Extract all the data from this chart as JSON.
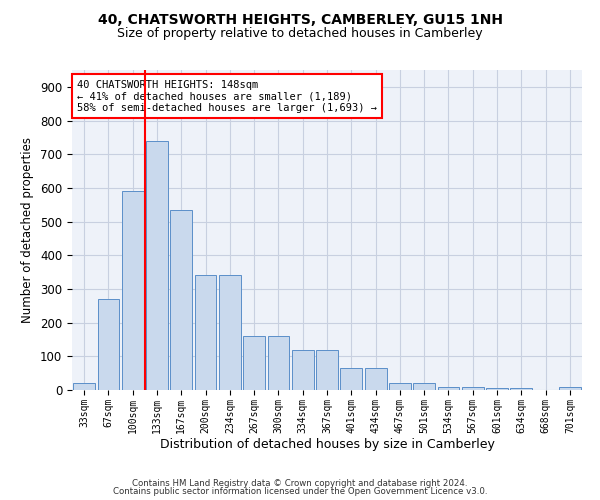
{
  "title": "40, CHATSWORTH HEIGHTS, CAMBERLEY, GU15 1NH",
  "subtitle": "Size of property relative to detached houses in Camberley",
  "xlabel": "Distribution of detached houses by size in Camberley",
  "ylabel": "Number of detached properties",
  "bar_labels": [
    "33sqm",
    "67sqm",
    "100sqm",
    "133sqm",
    "167sqm",
    "200sqm",
    "234sqm",
    "267sqm",
    "300sqm",
    "334sqm",
    "367sqm",
    "401sqm",
    "434sqm",
    "467sqm",
    "501sqm",
    "534sqm",
    "567sqm",
    "601sqm",
    "634sqm",
    "668sqm",
    "701sqm"
  ],
  "bar_values": [
    20,
    270,
    590,
    740,
    535,
    340,
    340,
    160,
    160,
    120,
    120,
    65,
    65,
    20,
    20,
    10,
    10,
    7,
    7,
    0,
    8
  ],
  "bar_color": "#c9d9ed",
  "bar_edge_color": "#5b8fc9",
  "grid_color": "#c8d0e0",
  "background_color": "#eef2f9",
  "property_label": "40 CHATSWORTH HEIGHTS: 148sqm",
  "pct_smaller": 41,
  "n_smaller": 1189,
  "pct_larger_semi": 58,
  "n_larger_semi": 1693,
  "vline_position": 2.5,
  "ylim": [
    0,
    950
  ],
  "yticks": [
    0,
    100,
    200,
    300,
    400,
    500,
    600,
    700,
    800,
    900
  ],
  "footer_line1": "Contains HM Land Registry data © Crown copyright and database right 2024.",
  "footer_line2": "Contains public sector information licensed under the Open Government Licence v3.0."
}
